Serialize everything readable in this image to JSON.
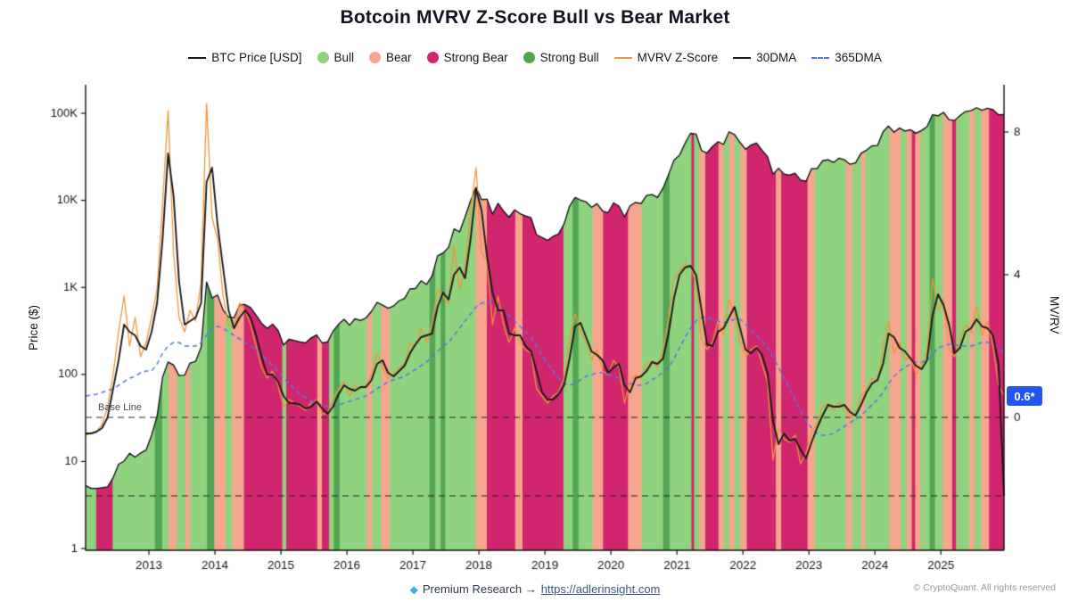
{
  "title": "Botcoin MVRV Z-Score Bull vs Bear Market",
  "legend": {
    "items": [
      {
        "marker": "line",
        "color": "#1a1a1a",
        "label": "BTC Price [USD]"
      },
      {
        "marker": "dot",
        "color": "#90d37e",
        "label": "Bull"
      },
      {
        "marker": "dot",
        "color": "#f6a58f",
        "label": "Bear"
      },
      {
        "marker": "dot",
        "color": "#d0266e",
        "label": "Strong Bear"
      },
      {
        "marker": "dot",
        "color": "#52a653",
        "label": "Strong Bull"
      },
      {
        "marker": "line",
        "color": "#f0953a",
        "label": "MVRV Z-Score"
      },
      {
        "marker": "line",
        "color": "#1a1a1a",
        "label": "30DMA"
      },
      {
        "marker": "dashed",
        "color": "#4f78ec",
        "label": "365DMA"
      }
    ]
  },
  "axes": {
    "left_title": "Price ($)",
    "right_title": "MV/RV",
    "price_ticks": [
      {
        "label": "1",
        "value": 1
      },
      {
        "label": "10",
        "value": 10
      },
      {
        "label": "100",
        "value": 100
      },
      {
        "label": "1K",
        "value": 1000
      },
      {
        "label": "10K",
        "value": 10000
      },
      {
        "label": "100K",
        "value": 100000
      }
    ],
    "mvrv_ticks": [
      {
        "label": "0",
        "value": 0
      },
      {
        "label": "4",
        "value": 4
      },
      {
        "label": "8",
        "value": 8
      }
    ],
    "year_ticks": [
      "2013",
      "2014",
      "2015",
      "2016",
      "2017",
      "2018",
      "2019",
      "2020",
      "2021",
      "2022",
      "2023",
      "2024",
      "2025"
    ]
  },
  "annotations": {
    "baseline_label": "Base Line",
    "baseline_value": 0,
    "lower_dashed_value": -2.2
  },
  "badge": {
    "value": "0.6*",
    "color": "#2253f5"
  },
  "footer": {
    "gem": "◆",
    "text": "Premium Research →",
    "link": "https://adlerinsight.com",
    "copyright": "© CryptoQuant. All rights reserved"
  },
  "colors": {
    "price_line": "#0d0d12",
    "mvrv": "#f0953a",
    "dma30": "#1a1a1a",
    "dma365": "#4f78ec",
    "bull": "#90d37e",
    "bear": "#f6a58f",
    "strong_bear": "#d0266e",
    "strong_bull": "#52a653",
    "axis": "#111111"
  },
  "chart_data": {
    "type": "line",
    "title": "Botcoin MVRV Z-Score Bull vs Bear Market",
    "xlabel": "Year",
    "ylabel_left": "Price ($)",
    "ylabel_right": "MV/RV",
    "x_start": 2012.04,
    "x_step": 0.083333,
    "x_domain": [
      2012.04,
      2025.96
    ],
    "price_axis": {
      "scale": "log",
      "range": [
        1,
        200000
      ],
      "ticks": [
        1,
        10,
        100,
        1000,
        10000,
        100000
      ]
    },
    "mvrv_axis": {
      "scale": "linear",
      "ticks": [
        0,
        4,
        8
      ]
    },
    "series": {
      "price": [
        5.3,
        4.9,
        4.9,
        5.0,
        5.1,
        6.5,
        9.3,
        10.1,
        12.4,
        11.2,
        12.5,
        13.5,
        20,
        33,
        93,
        139,
        128,
        97,
        98,
        135,
        141,
        204,
        1150,
        757,
        815,
        550,
        458,
        447,
        627,
        635,
        585,
        478,
        387,
        338,
        378,
        320,
        217,
        254,
        244,
        236,
        230,
        263,
        284,
        230,
        236,
        314,
        377,
        430,
        368,
        437,
        416,
        448,
        531,
        673,
        624,
        575,
        610,
        701,
        745,
        963,
        970,
        1190,
        1080,
        1350,
        2300,
        2480,
        2880,
        4700,
        4340,
        6450,
        9900,
        14100,
        10200,
        10300,
        6930,
        9240,
        7500,
        6400,
        7750,
        7030,
        6620,
        6300,
        4020,
        3740,
        3460,
        3850,
        4100,
        5350,
        8550,
        10800,
        10080,
        9600,
        8300,
        9150,
        7550,
        7200,
        9350,
        8550,
        6440,
        8650,
        9450,
        9140,
        11350,
        11650,
        10780,
        13800,
        19700,
        29000,
        33100,
        45200,
        58800,
        57750,
        37300,
        35000,
        41500,
        47100,
        43800,
        61300,
        57000,
        46200,
        38500,
        43200,
        45500,
        37700,
        31800,
        19900,
        23300,
        20050,
        19430,
        20500,
        17100,
        16550,
        23140,
        23140,
        28470,
        29230,
        27220,
        30480,
        29230,
        25930,
        26960,
        34650,
        37710,
        42270,
        42580,
        61200,
        71330,
        60640,
        67530,
        62680,
        64630,
        58970,
        63330,
        70220,
        96400,
        93430,
        102400,
        84350,
        82550,
        94200,
        104600,
        107100,
        115800,
        108200,
        114000,
        110100,
        96000,
        97000
      ],
      "mvrv": [
        -0.5,
        -0.45,
        -0.4,
        -0.2,
        0.3,
        1.2,
        2.4,
        3.4,
        2.0,
        2.8,
        1.7,
        2.1,
        2.8,
        3.6,
        6.0,
        8.6,
        4.6,
        2.8,
        2.4,
        3.0,
        2.7,
        3.8,
        8.8,
        5.6,
        5.0,
        3.4,
        2.6,
        2.5,
        3.2,
        3.0,
        2.6,
        2.0,
        1.4,
        1.1,
        1.3,
        0.9,
        0.3,
        0.5,
        0.4,
        0.3,
        0.2,
        0.4,
        0.5,
        0.1,
        0.1,
        0.5,
        0.8,
        1.0,
        0.6,
        0.9,
        0.8,
        0.9,
        1.2,
        1.8,
        1.4,
        1.1,
        1.2,
        1.4,
        1.5,
        2.1,
        2.0,
        2.5,
        2.1,
        2.6,
        3.6,
        3.4,
        3.2,
        4.8,
        3.6,
        4.2,
        5.8,
        7.0,
        4.6,
        4.4,
        2.6,
        3.4,
        2.6,
        2.1,
        2.5,
        2.1,
        1.9,
        1.8,
        0.8,
        0.6,
        0.4,
        0.6,
        0.7,
        1.1,
        2.2,
        2.9,
        2.4,
        2.1,
        1.6,
        1.9,
        1.3,
        1.2,
        1.6,
        1.4,
        0.4,
        1.0,
        1.2,
        1.1,
        1.5,
        1.6,
        1.4,
        1.9,
        2.8,
        3.9,
        4.1,
        4.3,
        4.2,
        3.8,
        2.2,
        1.9,
        2.1,
        2.7,
        2.3,
        3.3,
        2.9,
        2.1,
        1.7,
        1.9,
        2.0,
        1.5,
        1.0,
        -1.2,
        -0.3,
        -0.6,
        -0.7,
        -0.5,
        -1.3,
        -1.0,
        -0.4,
        -0.2,
        0.3,
        0.4,
        0.2,
        0.4,
        0.3,
        0.0,
        0.1,
        0.6,
        0.8,
        1.1,
        1.0,
        2.0,
        2.7,
        1.8,
        2.1,
        1.6,
        1.7,
        1.2,
        1.5,
        1.8,
        3.9,
        3.0,
        3.3,
        1.9,
        1.7,
        2.2,
        2.6,
        2.4,
        3.1,
        2.3,
        2.7,
        2.0,
        0.9,
        0.6
      ],
      "mvrv_30dma": [
        -0.45,
        -0.45,
        -0.4,
        -0.3,
        0.0,
        0.8,
        1.6,
        2.6,
        2.4,
        2.3,
        2.0,
        1.9,
        2.4,
        3.2,
        5.0,
        7.4,
        6.2,
        3.8,
        2.6,
        2.7,
        2.8,
        3.2,
        6.6,
        7.0,
        5.4,
        4.2,
        3.0,
        2.5,
        2.8,
        3.0,
        2.8,
        2.3,
        1.7,
        1.2,
        1.2,
        1.0,
        0.6,
        0.4,
        0.4,
        0.35,
        0.25,
        0.3,
        0.45,
        0.25,
        0.1,
        0.3,
        0.65,
        0.9,
        0.8,
        0.75,
        0.85,
        0.85,
        1.05,
        1.5,
        1.6,
        1.25,
        1.15,
        1.3,
        1.45,
        1.8,
        2.05,
        2.25,
        2.3,
        2.35,
        3.1,
        3.5,
        3.3,
        4.0,
        4.2,
        3.9,
        5.0,
        6.4,
        5.8,
        4.5,
        3.5,
        3.0,
        3.0,
        2.35,
        2.3,
        2.3,
        2.0,
        1.85,
        1.3,
        0.7,
        0.5,
        0.5,
        0.65,
        0.9,
        1.65,
        2.55,
        2.65,
        2.25,
        1.85,
        1.75,
        1.6,
        1.25,
        1.4,
        1.5,
        0.9,
        0.7,
        1.1,
        1.15,
        1.3,
        1.55,
        1.5,
        1.65,
        2.35,
        3.35,
        4.0,
        4.2,
        4.25,
        4.0,
        3.0,
        2.05,
        2.0,
        2.4,
        2.5,
        2.8,
        3.1,
        2.5,
        1.9,
        1.8,
        1.95,
        1.75,
        1.25,
        -0.1,
        -0.75,
        -0.45,
        -0.65,
        -0.6,
        -0.9,
        -1.15,
        -0.7,
        -0.3,
        0.05,
        0.35,
        0.3,
        0.3,
        0.35,
        0.15,
        0.05,
        0.35,
        0.7,
        0.95,
        1.05,
        1.5,
        2.35,
        2.25,
        1.95,
        1.85,
        1.65,
        1.45,
        1.35,
        1.6,
        2.85,
        3.45,
        3.15,
        2.6,
        1.8,
        1.95,
        2.4,
        2.5,
        2.75,
        2.55,
        2.5,
        2.3,
        1.5,
        -2.2
      ],
      "mvrv_365dma": [
        0.6,
        0.62,
        0.65,
        0.7,
        0.75,
        0.8,
        0.9,
        1.0,
        1.1,
        1.15,
        1.25,
        1.3,
        1.3,
        1.5,
        1.8,
        2.0,
        2.1,
        2.1,
        2.0,
        2.0,
        2.0,
        2.1,
        2.3,
        2.5,
        2.55,
        2.5,
        2.4,
        2.3,
        2.2,
        2.1,
        2.0,
        1.9,
        1.75,
        1.6,
        1.45,
        1.3,
        1.1,
        0.95,
        0.8,
        0.65,
        0.55,
        0.45,
        0.4,
        0.35,
        0.3,
        0.3,
        0.35,
        0.4,
        0.45,
        0.5,
        0.55,
        0.6,
        0.7,
        0.8,
        0.9,
        1.0,
        1.05,
        1.1,
        1.15,
        1.25,
        1.35,
        1.45,
        1.55,
        1.7,
        1.85,
        2.0,
        2.1,
        2.3,
        2.5,
        2.7,
        2.9,
        3.1,
        3.2,
        3.25,
        3.2,
        3.1,
        3.0,
        2.85,
        2.7,
        2.55,
        2.4,
        2.25,
        2.0,
        1.75,
        1.5,
        1.3,
        1.1,
        0.95,
        0.9,
        0.95,
        1.05,
        1.15,
        1.2,
        1.25,
        1.25,
        1.2,
        1.15,
        1.1,
        1.0,
        0.95,
        0.9,
        0.9,
        0.95,
        1.05,
        1.15,
        1.25,
        1.4,
        1.65,
        1.95,
        2.25,
        2.5,
        2.7,
        2.8,
        2.8,
        2.75,
        2.7,
        2.65,
        2.7,
        2.75,
        2.75,
        2.6,
        2.45,
        2.3,
        2.15,
        1.95,
        1.7,
        1.4,
        1.1,
        0.8,
        0.5,
        0.2,
        -0.1,
        -0.3,
        -0.45,
        -0.5,
        -0.5,
        -0.45,
        -0.35,
        -0.25,
        -0.15,
        -0.05,
        0.05,
        0.2,
        0.35,
        0.5,
        0.7,
        0.95,
        1.15,
        1.3,
        1.4,
        1.5,
        1.55,
        1.55,
        1.6,
        1.75,
        1.95,
        2.0,
        2.05,
        2.05,
        2.0,
        2.0,
        2.0,
        2.05,
        2.1,
        2.1,
        2.05,
        1.95,
        1.8
      ]
    },
    "regime_bands": [
      [
        2012.04,
        2012.2,
        "bull"
      ],
      [
        2012.2,
        2012.45,
        "strong-bear"
      ],
      [
        2012.45,
        2013.09,
        "bull"
      ],
      [
        2013.09,
        2013.2,
        "strong-bull"
      ],
      [
        2013.2,
        2013.3,
        "bull"
      ],
      [
        2013.3,
        2013.42,
        "bear"
      ],
      [
        2013.42,
        2013.55,
        "bull"
      ],
      [
        2013.55,
        2013.62,
        "bear"
      ],
      [
        2013.62,
        2013.88,
        "bull"
      ],
      [
        2013.88,
        2013.99,
        "strong-bull"
      ],
      [
        2013.99,
        2014.16,
        "bear"
      ],
      [
        2014.16,
        2014.26,
        "bull"
      ],
      [
        2014.26,
        2014.44,
        "bear"
      ],
      [
        2014.44,
        2015.02,
        "strong-bear"
      ],
      [
        2015.02,
        2015.08,
        "bull"
      ],
      [
        2015.08,
        2015.55,
        "strong-bear"
      ],
      [
        2015.55,
        2015.62,
        "bear"
      ],
      [
        2015.62,
        2015.73,
        "strong-bear"
      ],
      [
        2015.73,
        2015.8,
        "bull"
      ],
      [
        2015.8,
        2015.89,
        "strong-bull"
      ],
      [
        2015.89,
        2016.3,
        "bull"
      ],
      [
        2016.3,
        2016.38,
        "bear"
      ],
      [
        2016.38,
        2016.52,
        "bull"
      ],
      [
        2016.52,
        2016.65,
        "bear"
      ],
      [
        2016.65,
        2017.25,
        "bull"
      ],
      [
        2017.25,
        2017.34,
        "strong-bull"
      ],
      [
        2017.34,
        2017.42,
        "bull"
      ],
      [
        2017.42,
        2017.49,
        "strong-bull"
      ],
      [
        2017.49,
        2017.95,
        "bull"
      ],
      [
        2017.95,
        2018.12,
        "bear"
      ],
      [
        2018.12,
        2018.55,
        "strong-bear"
      ],
      [
        2018.55,
        2018.66,
        "bear"
      ],
      [
        2018.66,
        2019.28,
        "strong-bear"
      ],
      [
        2019.28,
        2019.42,
        "bull"
      ],
      [
        2019.42,
        2019.51,
        "strong-bull"
      ],
      [
        2019.51,
        2019.72,
        "bull"
      ],
      [
        2019.72,
        2019.88,
        "bear"
      ],
      [
        2019.88,
        2020.26,
        "strong-bear"
      ],
      [
        2020.26,
        2020.46,
        "bear"
      ],
      [
        2020.46,
        2020.79,
        "bull"
      ],
      [
        2020.79,
        2020.89,
        "strong-bull"
      ],
      [
        2020.89,
        2021.22,
        "bull"
      ],
      [
        2021.22,
        2021.26,
        "strong-bear"
      ],
      [
        2021.26,
        2021.34,
        "bull"
      ],
      [
        2021.34,
        2021.43,
        "bear"
      ],
      [
        2021.43,
        2021.63,
        "strong-bear"
      ],
      [
        2021.63,
        2021.71,
        "bear"
      ],
      [
        2021.71,
        2021.79,
        "bull"
      ],
      [
        2021.79,
        2021.87,
        "bear"
      ],
      [
        2021.87,
        2021.96,
        "bull"
      ],
      [
        2021.96,
        2022.06,
        "bear"
      ],
      [
        2022.06,
        2022.5,
        "strong-bear"
      ],
      [
        2022.5,
        2022.58,
        "bear"
      ],
      [
        2022.58,
        2022.98,
        "strong-bear"
      ],
      [
        2022.98,
        2023.09,
        "bear"
      ],
      [
        2023.09,
        2023.56,
        "bull"
      ],
      [
        2023.56,
        2023.65,
        "bear"
      ],
      [
        2023.65,
        2023.79,
        "bull"
      ],
      [
        2023.79,
        2023.85,
        "bear"
      ],
      [
        2023.85,
        2024.22,
        "bull"
      ],
      [
        2024.22,
        2024.39,
        "bear"
      ],
      [
        2024.39,
        2024.48,
        "bull"
      ],
      [
        2024.48,
        2024.56,
        "bear"
      ],
      [
        2024.56,
        2024.61,
        "strong-bear"
      ],
      [
        2024.61,
        2024.69,
        "bear"
      ],
      [
        2024.69,
        2024.83,
        "bull"
      ],
      [
        2024.83,
        2024.91,
        "strong-bull"
      ],
      [
        2024.91,
        2025.03,
        "bull"
      ],
      [
        2025.03,
        2025.17,
        "bear"
      ],
      [
        2025.17,
        2025.23,
        "strong-bear"
      ],
      [
        2025.23,
        2025.43,
        "bull"
      ],
      [
        2025.43,
        2025.51,
        "bear"
      ],
      [
        2025.51,
        2025.61,
        "bull"
      ],
      [
        2025.61,
        2025.73,
        "bear"
      ],
      [
        2025.73,
        2025.96,
        "strong-bear"
      ]
    ],
    "legend_entries": [
      "BTC Price [USD]",
      "Bull",
      "Bear",
      "Strong Bear",
      "Strong Bull",
      "MVRV Z-Score",
      "30DMA",
      "365DMA"
    ],
    "current_value_badge": 0.6
  }
}
